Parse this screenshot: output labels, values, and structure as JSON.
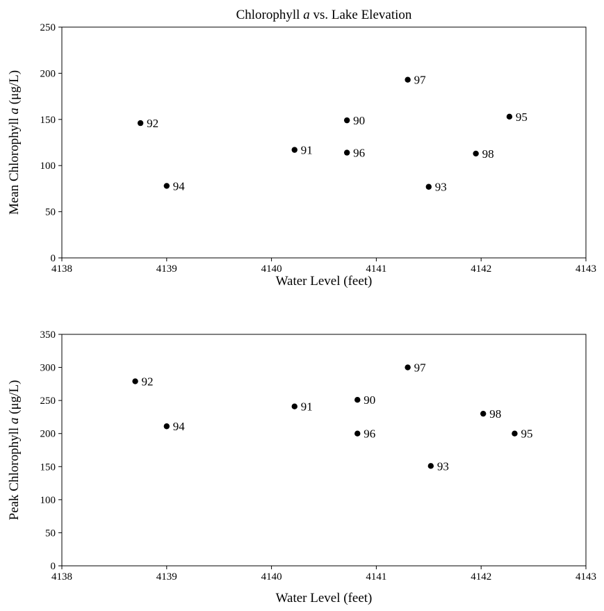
{
  "chart_data": [
    {
      "type": "scatter",
      "title": "Chlorophyll a vs. Lake Elevation",
      "title_parts": [
        "Chlorophyll ",
        "a",
        " vs. Lake Elevation"
      ],
      "xlabel": "Water Level (feet)",
      "ylabel": "Mean Chlorophyll a (μg/L)",
      "ylabel_parts": [
        "Mean Chlorophyll ",
        "a",
        " (μg/L)"
      ],
      "xlim": [
        4138,
        4143
      ],
      "ylim": [
        0,
        250
      ],
      "xticks": [
        "4138",
        "4139",
        "4140",
        "4141",
        "4142",
        "4143"
      ],
      "yticks": [
        "0",
        "50",
        "100",
        "150",
        "200",
        "250"
      ],
      "grid": false,
      "points": [
        {
          "label": "92",
          "x": 4138.75,
          "y": 146
        },
        {
          "label": "94",
          "x": 4139.0,
          "y": 78
        },
        {
          "label": "91",
          "x": 4140.22,
          "y": 117
        },
        {
          "label": "90",
          "x": 4140.72,
          "y": 149
        },
        {
          "label": "96",
          "x": 4140.72,
          "y": 114
        },
        {
          "label": "97",
          "x": 4141.3,
          "y": 193
        },
        {
          "label": "93",
          "x": 4141.5,
          "y": 77
        },
        {
          "label": "98",
          "x": 4141.95,
          "y": 113
        },
        {
          "label": "95",
          "x": 4142.27,
          "y": 153
        }
      ]
    },
    {
      "type": "scatter",
      "title": "",
      "xlabel": "Water Level (feet)",
      "ylabel": "Peak Chlorophyll a (μg/L)",
      "ylabel_parts": [
        "Peak Chlorophyll ",
        "a",
        " (μg/L)"
      ],
      "xlim": [
        4138,
        4143
      ],
      "ylim": [
        0,
        350
      ],
      "xticks": [
        "4138",
        "4139",
        "4140",
        "4141",
        "4142",
        "4143"
      ],
      "yticks": [
        "0",
        "50",
        "100",
        "150",
        "200",
        "250",
        "300",
        "350"
      ],
      "grid": false,
      "points": [
        {
          "label": "92",
          "x": 4138.7,
          "y": 279
        },
        {
          "label": "94",
          "x": 4139.0,
          "y": 211
        },
        {
          "label": "91",
          "x": 4140.22,
          "y": 241
        },
        {
          "label": "90",
          "x": 4140.82,
          "y": 251
        },
        {
          "label": "96",
          "x": 4140.82,
          "y": 200
        },
        {
          "label": "97",
          "x": 4141.3,
          "y": 300
        },
        {
          "label": "93",
          "x": 4141.52,
          "y": 151
        },
        {
          "label": "98",
          "x": 4142.02,
          "y": 230
        },
        {
          "label": "95",
          "x": 4142.32,
          "y": 200
        }
      ]
    }
  ]
}
